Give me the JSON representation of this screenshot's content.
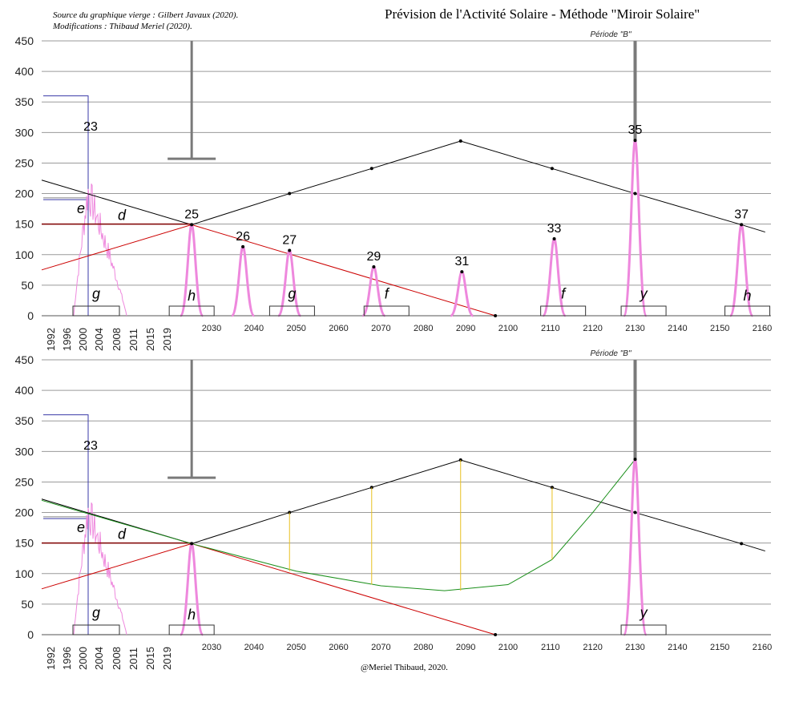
{
  "header": {
    "source_line1": "Source du graphique vierge : Gilbert Javaux (2020).",
    "source_line2": "Modifications : Thibaud Meriel (2020).",
    "title": "Prévision de l'Activité Solaire - Méthode \"Miroir Solaire\""
  },
  "footer": {
    "credit": "@Meriel Thibaud, 2020."
  },
  "colors": {
    "cycle_curve": "#ee88dd",
    "trend_black": "#000000",
    "trend_red": "#cc0000",
    "forecast_green": "#1a8f1a",
    "yellow_guides": "#e8c020",
    "blue_marker": "#3a3aa8",
    "bar_gray": "#7a7a7a",
    "grid": "#9a9a9a"
  },
  "chart_data": [
    {
      "type": "line",
      "title": "",
      "ylim": [
        0,
        450
      ],
      "yticks": [
        0,
        50,
        100,
        150,
        200,
        250,
        300,
        350,
        400,
        450
      ],
      "xticks_rotated": [
        "1992",
        "1996",
        "2000",
        "2004",
        "2008",
        "2011",
        "2015",
        "2019"
      ],
      "xticks": [
        "2030",
        "2040",
        "2050",
        "2060",
        "2070",
        "2080",
        "2090",
        "2100",
        "2110",
        "2120",
        "2130",
        "2140",
        "2150",
        "2160"
      ],
      "grid": true,
      "period_label": "Période \"B\"",
      "cycles": [
        {
          "label": "23",
          "year": 2000.6,
          "peak": 240
        },
        {
          "label": "25",
          "year": 2025.3,
          "peak": 149
        },
        {
          "label": "26",
          "year": 2037.4,
          "peak": 113
        },
        {
          "label": "27",
          "year": 2048.4,
          "peak": 107
        },
        {
          "label": "29",
          "year": 2068.3,
          "peak": 80
        },
        {
          "label": "31",
          "year": 2089.1,
          "peak": 72
        },
        {
          "label": "33",
          "year": 2110.9,
          "peak": 126
        },
        {
          "label": "35",
          "year": 2130.0,
          "peak": 287
        },
        {
          "label": "37",
          "year": 2155.1,
          "peak": 149
        }
      ],
      "trend_black": [
        [
          1990.8,
          222
        ],
        [
          2025.3,
          149
        ],
        [
          2048.4,
          200
        ],
        [
          2067.8,
          241
        ],
        [
          2088.8,
          286
        ],
        [
          2110.4,
          241
        ],
        [
          2130.0,
          200
        ],
        [
          2155.1,
          149
        ],
        [
          2160.7,
          137
        ]
      ],
      "trend_red": [
        [
          1990.8,
          75
        ],
        [
          2025.3,
          149
        ],
        [
          2097.0,
          0
        ]
      ],
      "baseline_150": [
        [
          1990.8,
          150
        ],
        [
          2025.3,
          150
        ]
      ],
      "letter_labels": [
        {
          "text": "g",
          "year": 2002.0,
          "value": 28
        },
        {
          "text": "h",
          "year": 2025.3,
          "value": 25
        },
        {
          "text": "g",
          "year": 2049.0,
          "value": 28
        },
        {
          "text": "f",
          "year": 2071.3,
          "value": 28
        },
        {
          "text": "f",
          "year": 2113.0,
          "value": 28
        },
        {
          "text": "y",
          "year": 2132.0,
          "value": 28
        },
        {
          "text": "h",
          "year": 2156.5,
          "value": 25
        },
        {
          "text": "e",
          "year": 1998.4,
          "value": 168
        },
        {
          "text": "d",
          "year": 2018.0,
          "value": 157
        }
      ]
    },
    {
      "type": "line",
      "title": "",
      "ylim": [
        0,
        450
      ],
      "yticks": [
        0,
        50,
        100,
        150,
        200,
        250,
        300,
        350,
        400,
        450
      ],
      "xticks_rotated": [
        "1992",
        "1996",
        "2000",
        "2004",
        "2008",
        "2011",
        "2015",
        "2019"
      ],
      "xticks": [
        "2030",
        "2040",
        "2050",
        "2060",
        "2070",
        "2080",
        "2090",
        "2100",
        "2110",
        "2120",
        "2130",
        "2140",
        "2150",
        "2160"
      ],
      "grid": true,
      "period_label": "Période \"B\"",
      "cycles": [
        {
          "label": "23",
          "year": 2000.6,
          "peak": 240
        },
        {
          "label": "",
          "year": 2025.3,
          "peak": 149
        },
        {
          "label": "",
          "year": 2130.0,
          "peak": 287
        }
      ],
      "trend_black": [
        [
          1990.8,
          222
        ],
        [
          2025.3,
          149
        ],
        [
          2048.4,
          200
        ],
        [
          2067.8,
          241
        ],
        [
          2088.8,
          286
        ],
        [
          2110.4,
          241
        ],
        [
          2130.0,
          200
        ],
        [
          2155.1,
          149
        ],
        [
          2160.7,
          137
        ]
      ],
      "trend_red": [
        [
          1990.8,
          75
        ],
        [
          2025.3,
          149
        ],
        [
          2097.0,
          0
        ]
      ],
      "baseline_150": [
        [
          1990.8,
          150
        ],
        [
          2025.3,
          150
        ]
      ],
      "green_forecast": [
        [
          1990.8,
          220
        ],
        [
          2025.3,
          149
        ],
        [
          2050.0,
          104
        ],
        [
          2070.0,
          80
        ],
        [
          2085.0,
          72
        ],
        [
          2100.0,
          82
        ],
        [
          2110.4,
          123
        ],
        [
          2120.0,
          200
        ],
        [
          2130.0,
          287
        ]
      ],
      "yellow_guides": [
        [
          2048.4,
          200,
          104
        ],
        [
          2067.8,
          241,
          82
        ],
        [
          2088.8,
          286,
          72
        ],
        [
          2110.4,
          241,
          123
        ]
      ],
      "letter_labels": [
        {
          "text": "g",
          "year": 2002.0,
          "value": 28
        },
        {
          "text": "h",
          "year": 2025.3,
          "value": 25
        },
        {
          "text": "y",
          "year": 2132.0,
          "value": 28
        },
        {
          "text": "e",
          "year": 1998.4,
          "value": 168
        },
        {
          "text": "d",
          "year": 2018.0,
          "value": 157
        }
      ]
    }
  ]
}
